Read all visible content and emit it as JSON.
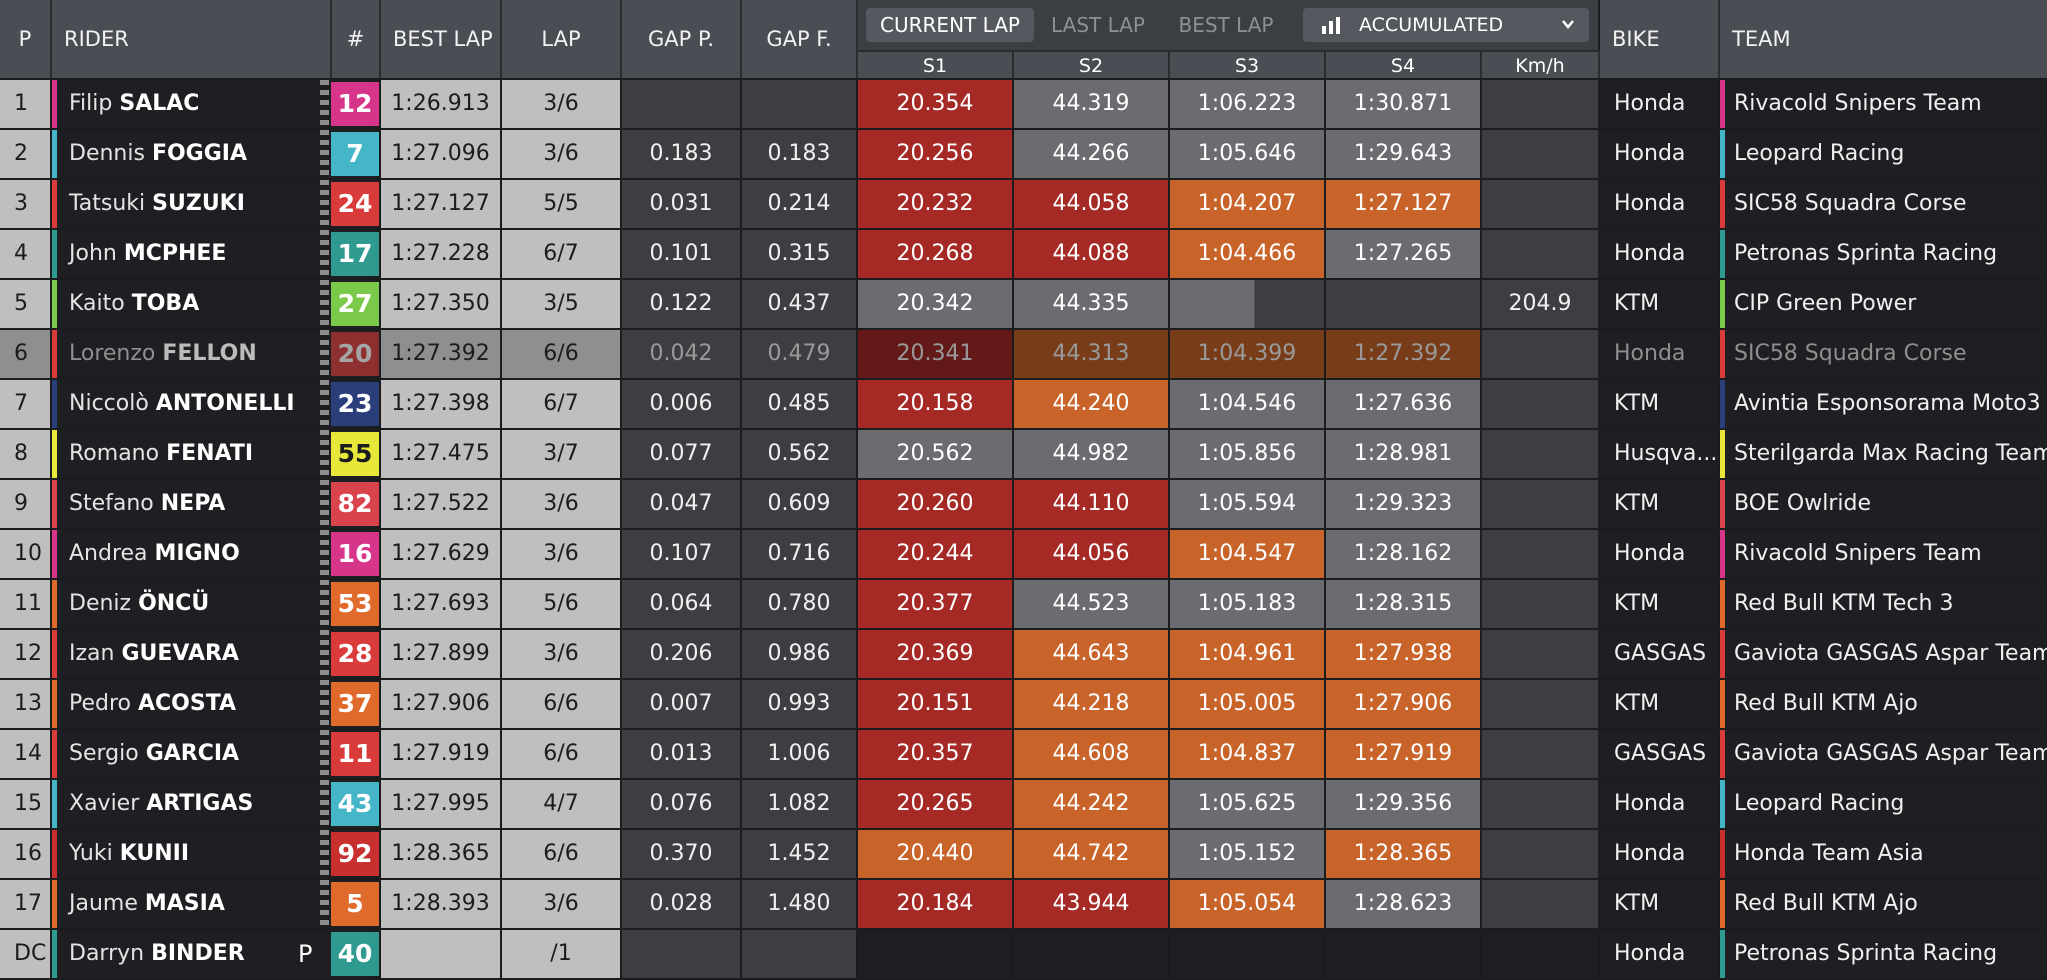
{
  "headers": {
    "pos": "P",
    "rider": "RIDER",
    "num": "#",
    "best_lap": "BEST LAP",
    "lap": "LAP",
    "gap_p": "GAP P.",
    "gap_f": "GAP F.",
    "bike": "BIKE",
    "team": "TEAM",
    "s1": "S1",
    "s2": "S2",
    "s3": "S3",
    "s4": "S4",
    "kmh": "Km/h"
  },
  "tabs": {
    "current_lap": "CURRENT LAP",
    "last_lap": "LAST LAP",
    "best_lap": "BEST LAP"
  },
  "view_select": {
    "label": "ACCUMULATED",
    "icon": "bar-chart-icon"
  },
  "colors": {
    "sector_red": "#a52a26",
    "sector_grey": "#6a6c70",
    "sector_orange": "#c8642a"
  },
  "rows": [
    {
      "pos": "1",
      "first": "Filip",
      "last": "SALAC",
      "num": "12",
      "num_color": "#d7358a",
      "team_color": "#d7358a",
      "best": "1:26.913",
      "lap": "3/6",
      "gap_p": "",
      "gap_f": "",
      "s1": "20.354",
      "s1c": "red",
      "s2": "44.319",
      "s2c": "grey",
      "s3": "1:06.223",
      "s3c": "grey",
      "s4": "1:30.871",
      "s4c": "grey",
      "kmh": "",
      "bike": "Honda",
      "team": "Rivacold Snipers Team"
    },
    {
      "pos": "2",
      "first": "Dennis",
      "last": "FOGGIA",
      "num": "7",
      "num_color": "#45b5c8",
      "team_color": "#45b5c8",
      "best": "1:27.096",
      "lap": "3/6",
      "gap_p": "0.183",
      "gap_f": "0.183",
      "s1": "20.256",
      "s1c": "red",
      "s2": "44.266",
      "s2c": "grey",
      "s3": "1:05.646",
      "s3c": "grey",
      "s4": "1:29.643",
      "s4c": "grey",
      "kmh": "",
      "bike": "Honda",
      "team": "Leopard Racing"
    },
    {
      "pos": "3",
      "first": "Tatsuki",
      "last": "SUZUKI",
      "num": "24",
      "num_color": "#d93a3a",
      "team_color": "#d93a3a",
      "best": "1:27.127",
      "lap": "5/5",
      "gap_p": "0.031",
      "gap_f": "0.214",
      "s1": "20.232",
      "s1c": "red",
      "s2": "44.058",
      "s2c": "red",
      "s3": "1:04.207",
      "s3c": "orange",
      "s4": "1:27.127",
      "s4c": "orange",
      "kmh": "",
      "bike": "Honda",
      "team": "SIC58 Squadra Corse"
    },
    {
      "pos": "4",
      "first": "John",
      "last": "MCPHEE",
      "num": "17",
      "num_color": "#2f9a8f",
      "team_color": "#2f9a8f",
      "best": "1:27.228",
      "lap": "6/7",
      "gap_p": "0.101",
      "gap_f": "0.315",
      "s1": "20.268",
      "s1c": "red",
      "s2": "44.088",
      "s2c": "red",
      "s3": "1:04.466",
      "s3c": "orange",
      "s4": "1:27.265",
      "s4c": "grey",
      "kmh": "",
      "bike": "Honda",
      "team": "Petronas Sprinta Racing"
    },
    {
      "pos": "5",
      "first": "Kaito",
      "last": "TOBA",
      "num": "27",
      "num_color": "#7bc94a",
      "team_color": "#7bc94a",
      "best": "1:27.350",
      "lap": "3/5",
      "gap_p": "0.122",
      "gap_f": "0.437",
      "s1": "20.342",
      "s1c": "grey",
      "s2": "44.335",
      "s2c": "grey",
      "s3": "",
      "s3c": "partial",
      "s4": "",
      "s4c": "empty",
      "kmh": "204.9",
      "bike": "KTM",
      "team": "CIP Green Power"
    },
    {
      "pos": "6",
      "first": "Lorenzo",
      "last": "FELLON",
      "num": "20",
      "num_color": "#d93a3a",
      "team_color": "#d93a3a",
      "best": "1:27.392",
      "lap": "6/6",
      "gap_p": "0.042",
      "gap_f": "0.479",
      "s1": "20.341",
      "s1c": "red",
      "s2": "44.313",
      "s2c": "orange",
      "s3": "1:04.399",
      "s3c": "orange",
      "s4": "1:27.392",
      "s4c": "orange",
      "kmh": "",
      "bike": "Honda",
      "team": "SIC58 Squadra Corse",
      "dim": true
    },
    {
      "pos": "7",
      "first": "Niccolò",
      "last": "ANTONELLI",
      "num": "23",
      "num_color": "#2a3e7a",
      "team_color": "#2a3e7a",
      "best": "1:27.398",
      "lap": "6/7",
      "gap_p": "0.006",
      "gap_f": "0.485",
      "s1": "20.158",
      "s1c": "red",
      "s2": "44.240",
      "s2c": "orange",
      "s3": "1:04.546",
      "s3c": "grey",
      "s4": "1:27.636",
      "s4c": "grey",
      "kmh": "",
      "bike": "KTM",
      "team": "Avintia Esponsorama Moto3"
    },
    {
      "pos": "8",
      "first": "Romano",
      "last": "FENATI",
      "num": "55",
      "num_color": "#e8e83a",
      "team_color": "#e8e83a",
      "best": "1:27.475",
      "lap": "3/7",
      "gap_p": "0.077",
      "gap_f": "0.562",
      "s1": "20.562",
      "s1c": "grey",
      "s2": "44.982",
      "s2c": "grey",
      "s3": "1:05.856",
      "s3c": "grey",
      "s4": "1:28.981",
      "s4c": "grey",
      "kmh": "",
      "bike": "Husqva...",
      "team": "Sterilgarda Max Racing Team",
      "dark_num": true
    },
    {
      "pos": "9",
      "first": "Stefano",
      "last": "NEPA",
      "num": "82",
      "num_color": "#d9434c",
      "team_color": "#d9434c",
      "best": "1:27.522",
      "lap": "3/6",
      "gap_p": "0.047",
      "gap_f": "0.609",
      "s1": "20.260",
      "s1c": "red",
      "s2": "44.110",
      "s2c": "red",
      "s3": "1:05.594",
      "s3c": "grey",
      "s4": "1:29.323",
      "s4c": "grey",
      "kmh": "",
      "bike": "KTM",
      "team": "BOE Owlride"
    },
    {
      "pos": "10",
      "first": "Andrea",
      "last": "MIGNO",
      "num": "16",
      "num_color": "#d7358a",
      "team_color": "#d7358a",
      "best": "1:27.629",
      "lap": "3/6",
      "gap_p": "0.107",
      "gap_f": "0.716",
      "s1": "20.244",
      "s1c": "red",
      "s2": "44.056",
      "s2c": "red",
      "s3": "1:04.547",
      "s3c": "orange",
      "s4": "1:28.162",
      "s4c": "grey",
      "kmh": "",
      "bike": "Honda",
      "team": "Rivacold Snipers Team"
    },
    {
      "pos": "11",
      "first": "Deniz",
      "last": "ÖNCÜ",
      "num": "53",
      "num_color": "#e06a2c",
      "team_color": "#e06a2c",
      "best": "1:27.693",
      "lap": "5/6",
      "gap_p": "0.064",
      "gap_f": "0.780",
      "s1": "20.377",
      "s1c": "red",
      "s2": "44.523",
      "s2c": "grey",
      "s3": "1:05.183",
      "s3c": "grey",
      "s4": "1:28.315",
      "s4c": "grey",
      "kmh": "",
      "bike": "KTM",
      "team": "Red Bull KTM Tech 3"
    },
    {
      "pos": "12",
      "first": "Izan",
      "last": "GUEVARA",
      "num": "28",
      "num_color": "#d93a3a",
      "team_color": "#d93a3a",
      "best": "1:27.899",
      "lap": "3/6",
      "gap_p": "0.206",
      "gap_f": "0.986",
      "s1": "20.369",
      "s1c": "red",
      "s2": "44.643",
      "s2c": "orange",
      "s3": "1:04.961",
      "s3c": "orange",
      "s4": "1:27.938",
      "s4c": "orange",
      "kmh": "",
      "bike": "GASGAS",
      "team": "Gaviota GASGAS Aspar Team"
    },
    {
      "pos": "13",
      "first": "Pedro",
      "last": "ACOSTA",
      "num": "37",
      "num_color": "#e06a2c",
      "team_color": "#e06a2c",
      "best": "1:27.906",
      "lap": "6/6",
      "gap_p": "0.007",
      "gap_f": "0.993",
      "s1": "20.151",
      "s1c": "red",
      "s2": "44.218",
      "s2c": "orange",
      "s3": "1:05.005",
      "s3c": "orange",
      "s4": "1:27.906",
      "s4c": "orange",
      "kmh": "",
      "bike": "KTM",
      "team": "Red Bull KTM Ajo"
    },
    {
      "pos": "14",
      "first": "Sergio",
      "last": "GARCIA",
      "num": "11",
      "num_color": "#d93a3a",
      "team_color": "#d93a3a",
      "best": "1:27.919",
      "lap": "6/6",
      "gap_p": "0.013",
      "gap_f": "1.006",
      "s1": "20.357",
      "s1c": "red",
      "s2": "44.608",
      "s2c": "orange",
      "s3": "1:04.837",
      "s3c": "orange",
      "s4": "1:27.919",
      "s4c": "orange",
      "kmh": "",
      "bike": "GASGAS",
      "team": "Gaviota GASGAS Aspar Team"
    },
    {
      "pos": "15",
      "first": "Xavier",
      "last": "ARTIGAS",
      "num": "43",
      "num_color": "#45b5c8",
      "team_color": "#45b5c8",
      "best": "1:27.995",
      "lap": "4/7",
      "gap_p": "0.076",
      "gap_f": "1.082",
      "s1": "20.265",
      "s1c": "red",
      "s2": "44.242",
      "s2c": "orange",
      "s3": "1:05.625",
      "s3c": "grey",
      "s4": "1:29.356",
      "s4c": "grey",
      "kmh": "",
      "bike": "Honda",
      "team": "Leopard Racing"
    },
    {
      "pos": "16",
      "first": "Yuki",
      "last": "KUNII",
      "num": "92",
      "num_color": "#c83030",
      "team_color": "#c83030",
      "best": "1:28.365",
      "lap": "6/6",
      "gap_p": "0.370",
      "gap_f": "1.452",
      "s1": "20.440",
      "s1c": "orange",
      "s2": "44.742",
      "s2c": "orange",
      "s3": "1:05.152",
      "s3c": "grey",
      "s4": "1:28.365",
      "s4c": "orange",
      "kmh": "",
      "bike": "Honda",
      "team": "Honda Team Asia"
    },
    {
      "pos": "17",
      "first": "Jaume",
      "last": "MASIA",
      "num": "5",
      "num_color": "#e06a2c",
      "team_color": "#e06a2c",
      "best": "1:28.393",
      "lap": "3/6",
      "gap_p": "0.028",
      "gap_f": "1.480",
      "s1": "20.184",
      "s1c": "red",
      "s2": "43.944",
      "s2c": "red",
      "s3": "1:05.054",
      "s3c": "orange",
      "s4": "1:28.623",
      "s4c": "grey",
      "kmh": "",
      "bike": "KTM",
      "team": "Red Bull KTM Ajo"
    },
    {
      "pos": "DC",
      "first": "Darryn",
      "last": "BINDER",
      "pit": "P",
      "num": "40",
      "num_color": "#2f9a8f",
      "team_color": "#2f9a8f",
      "best": "",
      "lap": "/1",
      "gap_p": "",
      "gap_f": "",
      "s1": "",
      "s1c": "none",
      "s2": "",
      "s2c": "none",
      "s3": "",
      "s3c": "none",
      "s4": "",
      "s4c": "none",
      "kmh": "",
      "bike": "Honda",
      "team": "Petronas Sprinta Racing"
    }
  ]
}
